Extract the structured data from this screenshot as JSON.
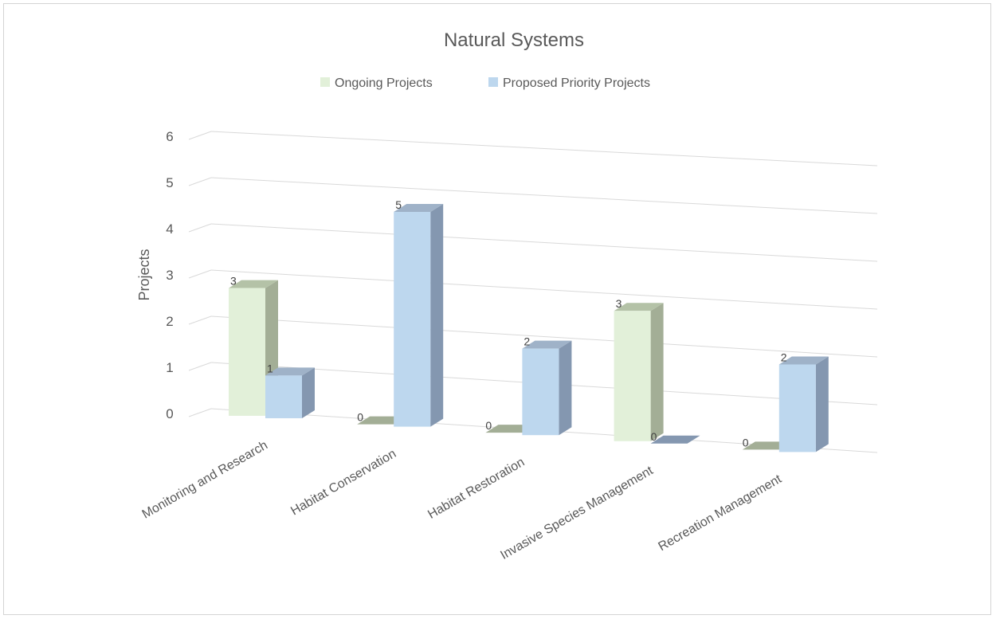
{
  "chart_data": {
    "type": "bar",
    "title": "Natural Systems",
    "ylabel": "Projects",
    "xlabel": "",
    "ylim": [
      0,
      6
    ],
    "yticks": [
      "0",
      "1",
      "2",
      "3",
      "4",
      "5",
      "6"
    ],
    "categories": [
      "Monitoring and Research",
      "Habitat Conservation",
      "Habitat Restoration",
      "Invasive Species Management",
      "Recreation Management"
    ],
    "series": [
      {
        "name": "Ongoing Projects",
        "values": [
          3,
          0,
          0,
          3,
          0
        ],
        "labels": [
          "3",
          "0",
          "0",
          "3",
          "0"
        ],
        "color": "#e2f0d9",
        "side_color": "#a3ae96",
        "top_color": "#b4c2a7"
      },
      {
        "name": "Proposed Priority Projects",
        "values": [
          1,
          5,
          2,
          0,
          2
        ],
        "labels": [
          "1",
          "5",
          "2",
          "0",
          "2"
        ],
        "color": "#bdd7ee",
        "side_color": "#8497b0",
        "top_color": "#9fb2c8"
      }
    ],
    "legend_position": "top",
    "grid": true,
    "style": "3d-perspective"
  }
}
